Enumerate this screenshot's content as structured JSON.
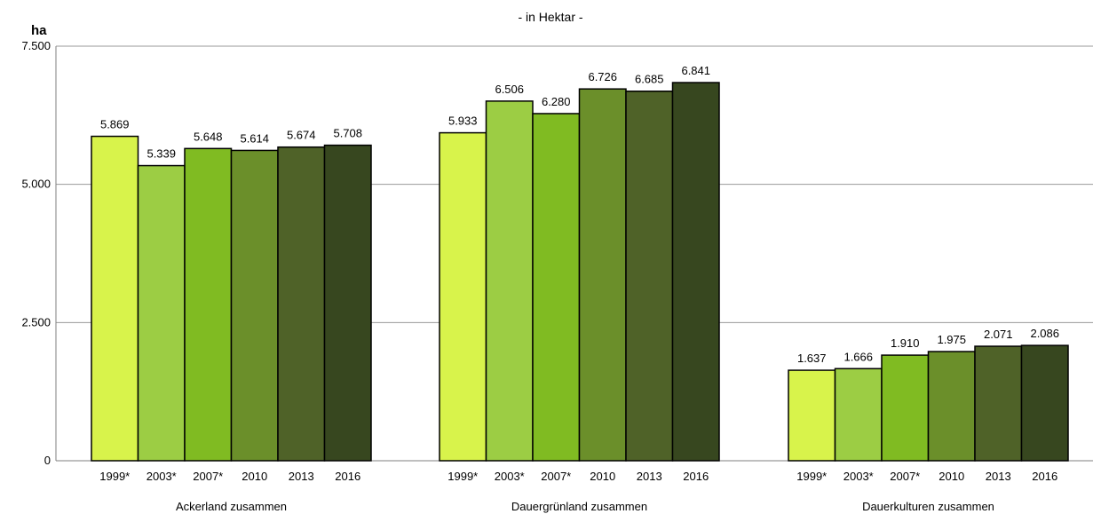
{
  "chart_data": {
    "type": "bar",
    "subtitle": "- in Hektar -",
    "unit_label": "ha",
    "ylim": [
      0,
      7500
    ],
    "yticks": [
      0,
      2500,
      5000,
      7500
    ],
    "ytick_labels": [
      "0",
      "2.500",
      "5.000",
      "7.500"
    ],
    "grid": true,
    "groups": [
      {
        "name": "Ackerland zusammen",
        "categories": [
          "1999*",
          "2003*",
          "2007*",
          "2010",
          "2013",
          "2016"
        ],
        "values": [
          5869,
          5339,
          5648,
          5614,
          5674,
          5708
        ],
        "value_labels": [
          "5.869",
          "5.339",
          "5.648",
          "5.614",
          "5.674",
          "5.708"
        ]
      },
      {
        "name": "Dauergrünland zusammen",
        "categories": [
          "1999*",
          "2003*",
          "2007*",
          "2010",
          "2013",
          "2016"
        ],
        "values": [
          5933,
          6506,
          6280,
          6726,
          6685,
          6841
        ],
        "value_labels": [
          "5.933",
          "6.506",
          "6.280",
          "6.726",
          "6.685",
          "6.841"
        ]
      },
      {
        "name": "Dauerkulturen zusammen",
        "categories": [
          "1999*",
          "2003*",
          "2007*",
          "2010",
          "2013",
          "2016"
        ],
        "values": [
          1637,
          1666,
          1910,
          1975,
          2071,
          2086
        ],
        "value_labels": [
          "1.637",
          "1.666",
          "1.910",
          "1.975",
          "2.071",
          "2.086"
        ]
      }
    ],
    "bar_colors": [
      "#d8f34b",
      "#9ccd44",
      "#80bb22",
      "#6b8f2a",
      "#4f6228",
      "#37471f"
    ]
  }
}
